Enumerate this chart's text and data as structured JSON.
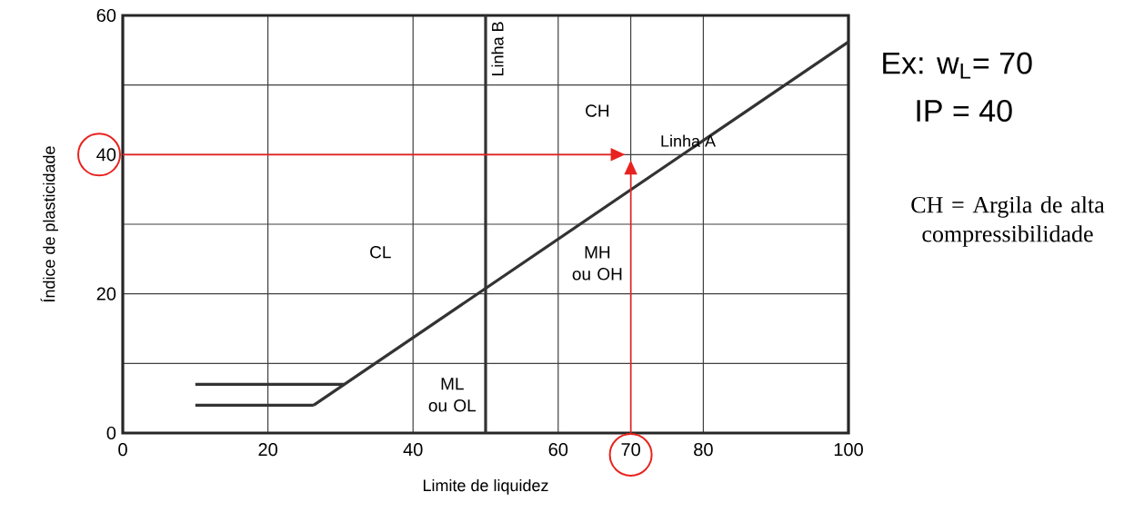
{
  "chart_data": {
    "type": "line",
    "xlabel": "Limite de liquidez",
    "ylabel": "Índice de plasticidade",
    "xlim": [
      0,
      100
    ],
    "ylim": [
      0,
      60
    ],
    "xticks": [
      0,
      20,
      40,
      60,
      70,
      80,
      100
    ],
    "yticks": [
      0,
      20,
      40,
      60
    ],
    "grid": true,
    "series": [
      {
        "name": "Linha A",
        "color": "#333333",
        "x": [
          26.3,
          100
        ],
        "values": [
          4,
          56.2
        ]
      },
      {
        "color": "#333333",
        "x": [
          10,
          30.5
        ],
        "values": [
          7,
          7
        ]
      },
      {
        "color": "#333333",
        "x": [
          10,
          26.3
        ],
        "values": [
          4,
          4
        ]
      }
    ],
    "ref_lines": [
      {
        "axis": "x",
        "value": 50,
        "label": "Linha B",
        "color": "#333333"
      }
    ],
    "annotations": [
      "CH",
      "CL",
      "MH ou OH",
      "ML ou OL",
      "Ex: w$_{L}$= 70",
      "IP = 40",
      "CH = Argila de alta compressibilidade"
    ]
  }
}
